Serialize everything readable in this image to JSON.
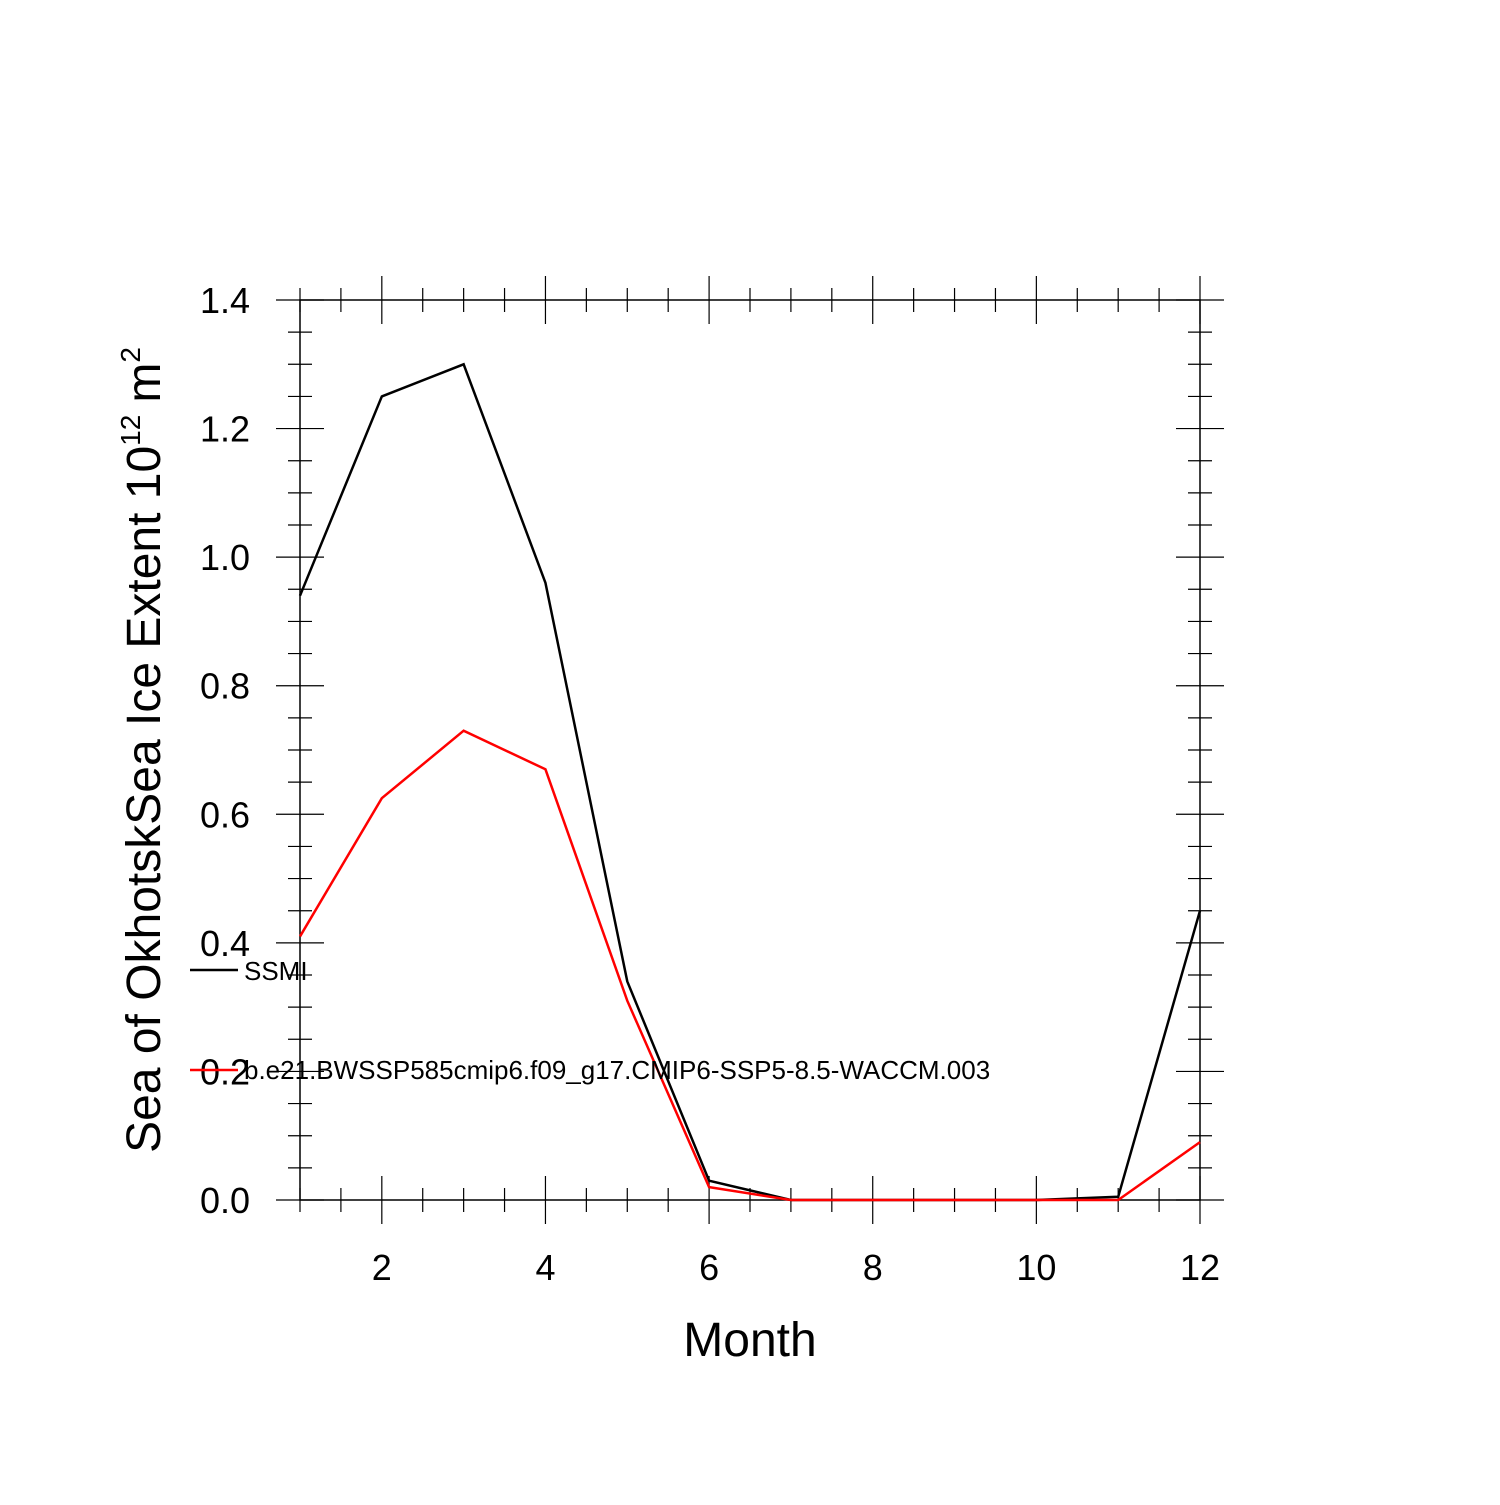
{
  "chart_data": {
    "type": "line",
    "title": "",
    "xlabel": "Month",
    "ylabel": "Sea of OkhotskSea Ice Extent 10",
    "ylabel_superscript": "12",
    "ylabel_unit": "m",
    "ylabel_unit_superscript": "2",
    "xlim": [
      1,
      12
    ],
    "ylim": [
      0,
      1.4
    ],
    "x": [
      1,
      2,
      3,
      4,
      5,
      6,
      7,
      8,
      9,
      10,
      11,
      12
    ],
    "x_ticks": [
      "2",
      "4",
      "6",
      "8",
      "10",
      "12"
    ],
    "y_ticks": [
      "0.0",
      "0.2",
      "0.4",
      "0.6",
      "0.8",
      "1.0",
      "1.2",
      "1.4"
    ],
    "grid": false,
    "legend_position": "left, inside plot",
    "series": [
      {
        "name": "SSMI",
        "color": "#000000",
        "values": [
          0.94,
          1.25,
          1.3,
          0.96,
          0.34,
          0.03,
          0.0,
          0.0,
          0.0,
          0.0,
          0.005,
          0.45
        ]
      },
      {
        "name": "b.e21.BWSSP585cmip6.f09_g17.CMIP6-SSP5-8.5-WACCM.003",
        "color": "#ff0000",
        "values": [
          0.41,
          0.625,
          0.73,
          0.67,
          0.31,
          0.02,
          0.0,
          0.0,
          0.0,
          0.0,
          0.0,
          0.09
        ]
      }
    ]
  }
}
